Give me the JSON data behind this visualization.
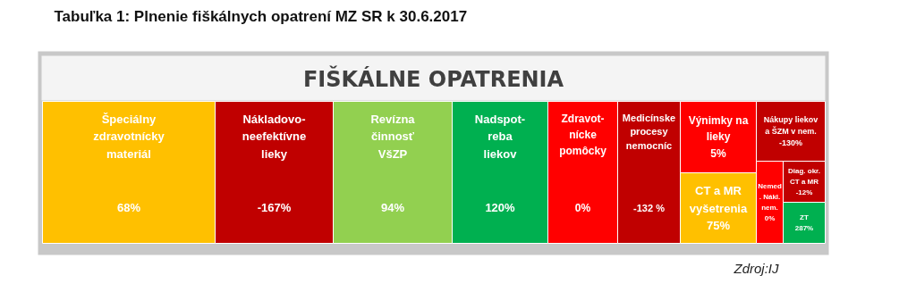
{
  "chart_data": {
    "type": "other",
    "title": "Tabuľka 1: Plnenie fiškálnych opatrení MZ SR k 30.6.2017",
    "subtitle": "FIŠKÁLNE OPATRENIA",
    "categories": [
      "Špeciálny\nzdravotnícky\nmateriál",
      "Nákladovo-\nneefektívne\nlieky",
      "Revízna\nčinnosť\nVšZP",
      "Nadspot-\nreba\nliekov",
      "Zdravot-\nnícke\npomôcky",
      "Medicínske\nprocesy\nnemocníc",
      "Výnimky na\nlieky",
      "CT a MR\nvyšetrenia",
      "Nákupy liekov\na ŠZM v nem.",
      "Nemed\n. Nákl.\nnem.",
      "Diag. okr.\nCT a MR",
      "ZT"
    ],
    "values": [
      68,
      -167,
      94,
      120,
      0,
      -132,
      5,
      75,
      -130,
      0,
      -12,
      287
    ],
    "value_labels": [
      "68%",
      "-167%",
      "94%",
      "120%",
      "0%",
      "-132 %",
      "5%",
      "75%",
      "-130%",
      "0%",
      "-12%",
      "287%"
    ],
    "colors": [
      "#ffc000",
      "#c00000",
      "#92d050",
      "#00b050",
      "#ff0000",
      "#c00000",
      "#ff0000",
      "#ffc000",
      "#c00000",
      "#ff0000",
      "#c00000",
      "#00b050"
    ],
    "annotations": [
      "Zdroj:IJ"
    ]
  }
}
